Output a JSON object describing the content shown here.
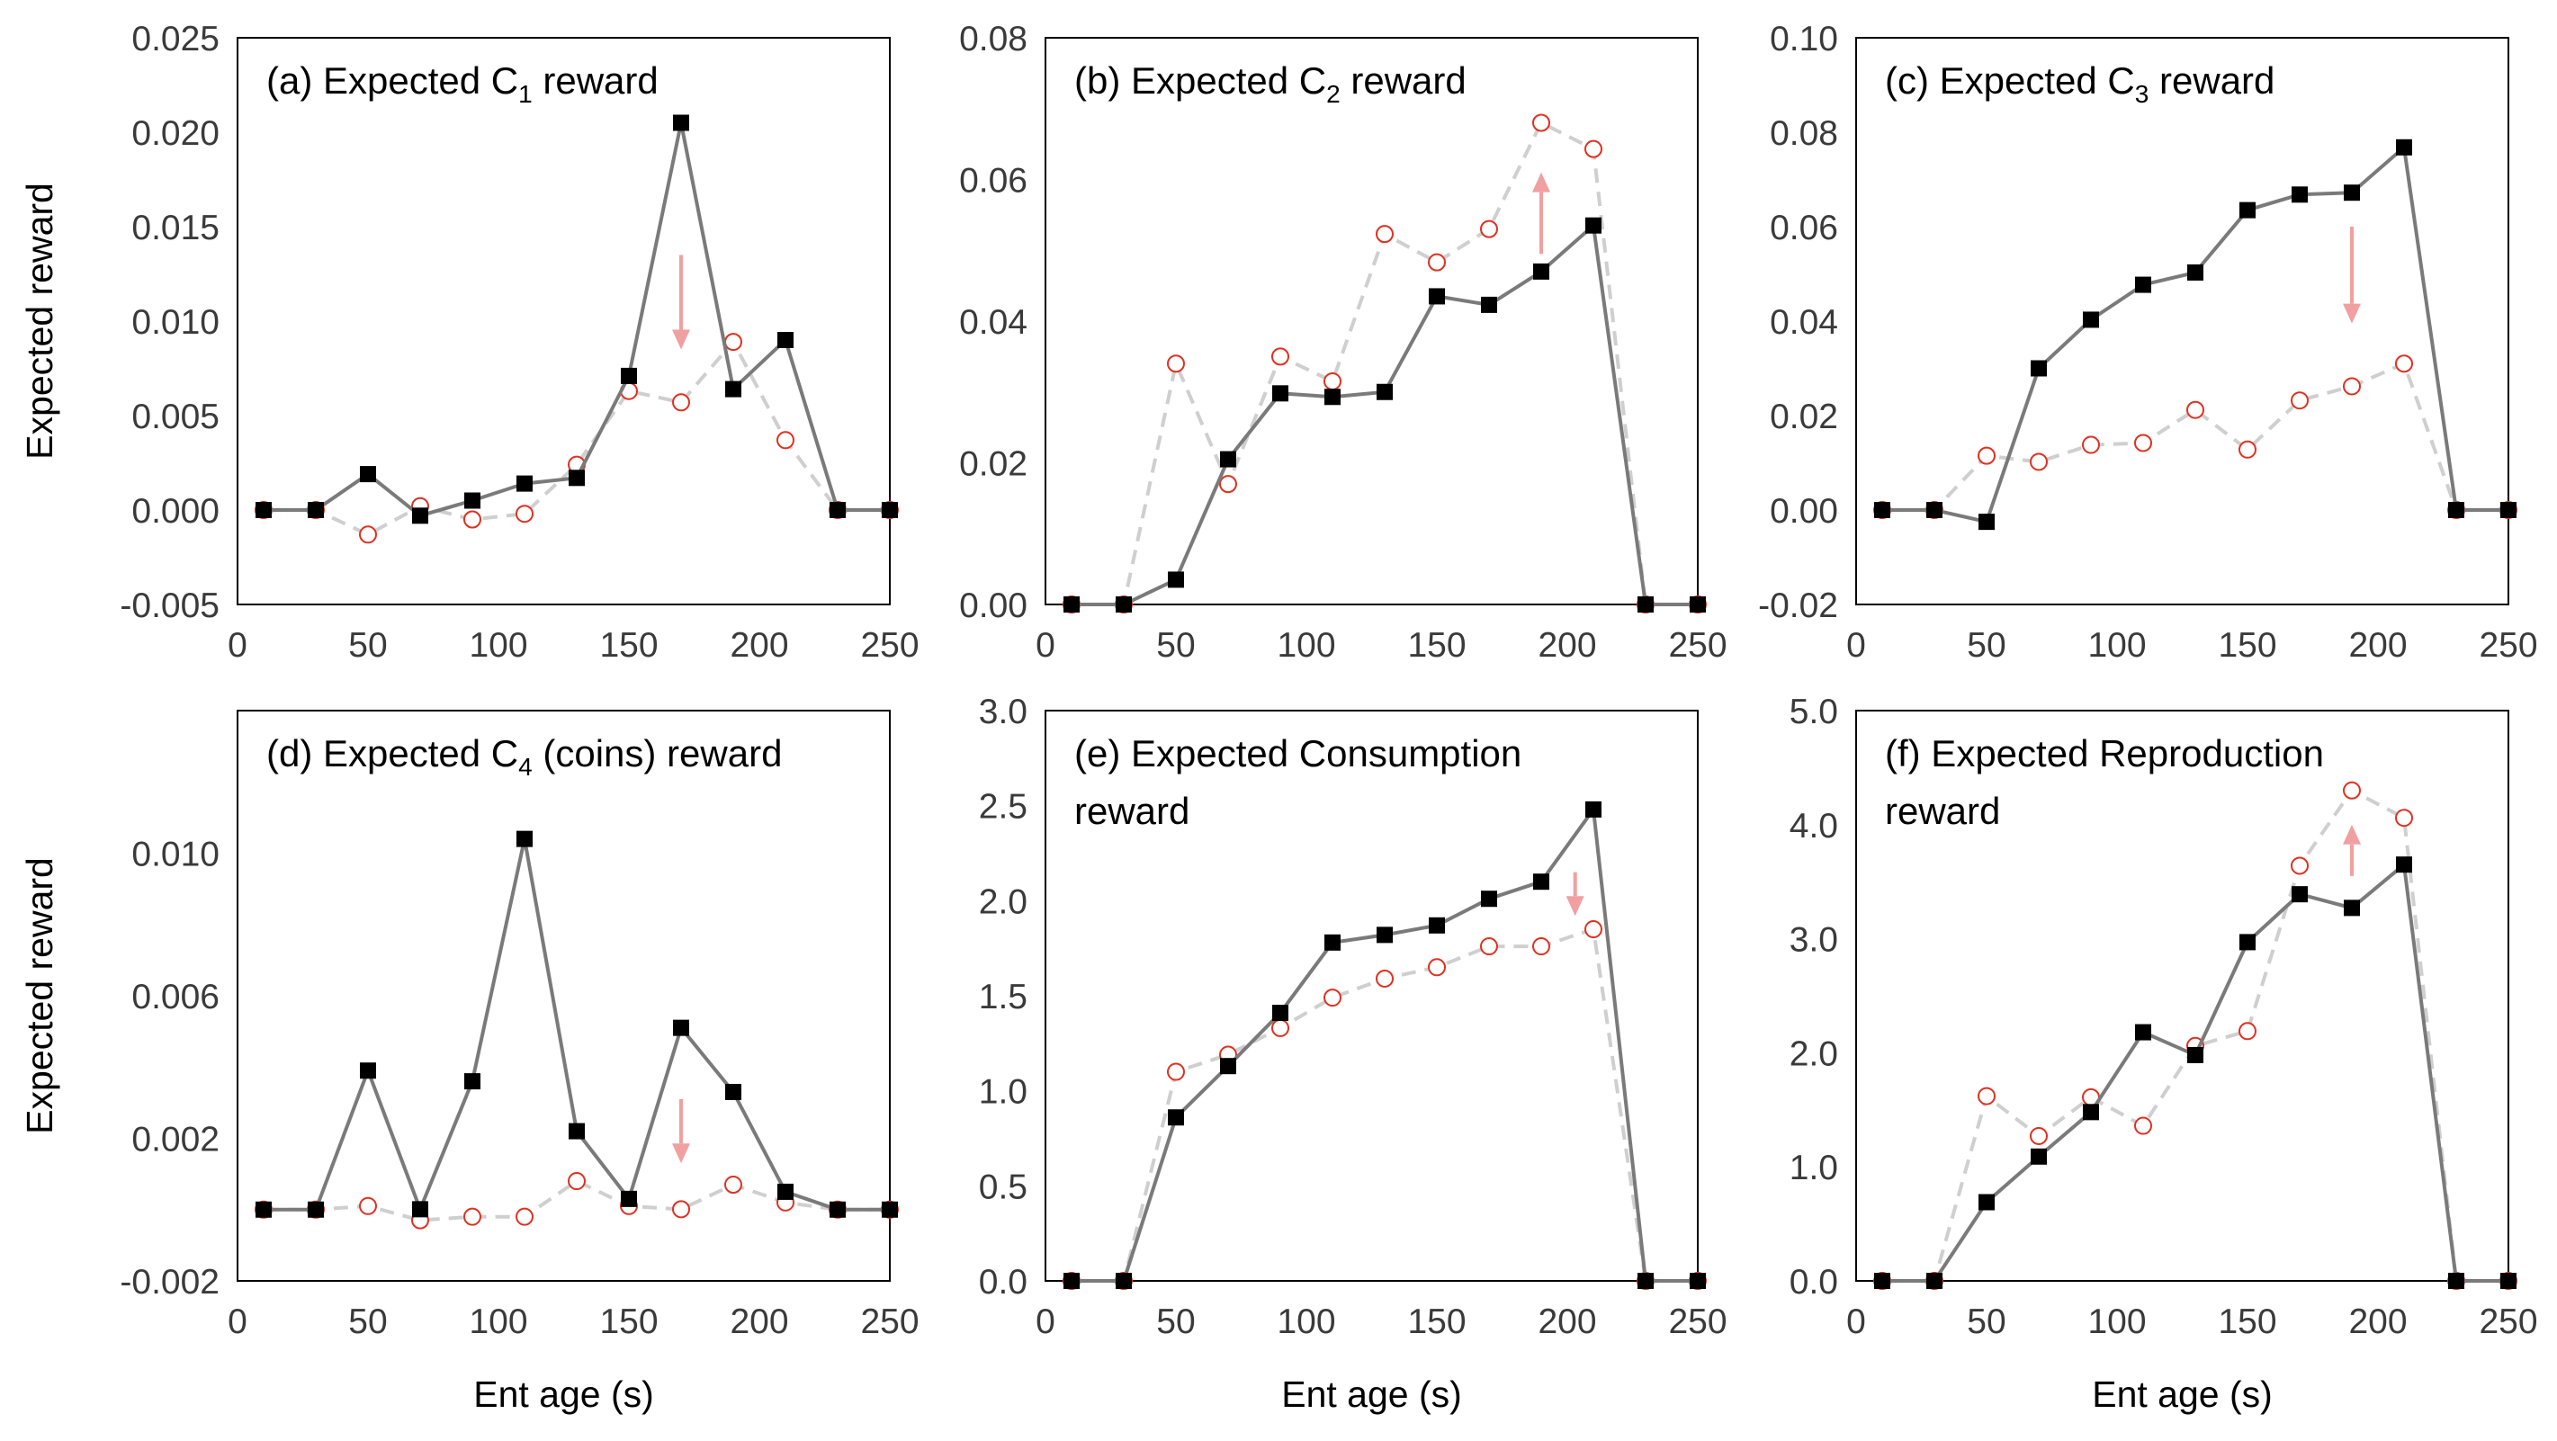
{
  "chart_data": [
    {
      "type": "line",
      "panel": "a",
      "title_lines": [
        {
          "parts": [
            {
              "text": "(a) Expected C"
            },
            {
              "text": "1",
              "sub": true
            },
            {
              "text": " reward"
            }
          ]
        }
      ],
      "xlabel": "",
      "ylabel": "Expected reward",
      "xlim": [
        0,
        250
      ],
      "ylim": [
        -0.005,
        0.025
      ],
      "xticks": [
        0,
        50,
        100,
        150,
        200,
        250
      ],
      "xtick_labels": [
        "0",
        "50",
        "100",
        "150",
        "200",
        "250"
      ],
      "yticks": [
        -0.005,
        0,
        0.005,
        0.01,
        0.015,
        0.02,
        0.025
      ],
      "ytick_labels": [
        "-0.005",
        "0.000",
        "0.005",
        "0.010",
        "0.015",
        "0.020",
        "0.025"
      ],
      "x": [
        10,
        30,
        50,
        70,
        90,
        110,
        130,
        150,
        170,
        190,
        210,
        230,
        250
      ],
      "series": [
        {
          "name": "solid",
          "style": "solid-square",
          "color": "#7a7a7a",
          "marker_color": "#000000",
          "values": [
            0,
            0,
            0.0019,
            -0.0003,
            0.0005,
            0.0014,
            0.0017,
            0.0071,
            0.0205,
            0.0064,
            0.009,
            0,
            0
          ]
        },
        {
          "name": "dashed",
          "style": "dashed-circle",
          "color": "#cfcfcf",
          "marker_color": "#e03020",
          "values": [
            0,
            0,
            -0.0013,
            0.0002,
            -0.0005,
            -0.0002,
            0.0024,
            0.0063,
            0.0057,
            0.0089,
            0.0037,
            0,
            0
          ]
        }
      ],
      "arrow": {
        "x": 170,
        "from": 0.0135,
        "to": 0.0085,
        "color": "#f0a0a0"
      }
    },
    {
      "type": "line",
      "panel": "b",
      "title_lines": [
        {
          "parts": [
            {
              "text": "(b) Expected C"
            },
            {
              "text": "2",
              "sub": true
            },
            {
              "text": " reward"
            }
          ]
        }
      ],
      "xlabel": "",
      "ylabel": "",
      "xlim": [
        0,
        250
      ],
      "ylim": [
        0,
        0.08
      ],
      "xticks": [
        0,
        50,
        100,
        150,
        200,
        250
      ],
      "xtick_labels": [
        "0",
        "50",
        "100",
        "150",
        "200",
        "250"
      ],
      "yticks": [
        0,
        0.02,
        0.04,
        0.06,
        0.08
      ],
      "ytick_labels": [
        "0.00",
        "0.02",
        "0.04",
        "0.06",
        "0.08"
      ],
      "x": [
        10,
        30,
        50,
        70,
        90,
        110,
        130,
        150,
        170,
        190,
        210,
        230,
        250
      ],
      "series": [
        {
          "name": "solid",
          "style": "solid-square",
          "color": "#7a7a7a",
          "marker_color": "#000000",
          "values": [
            0,
            0,
            0.0035,
            0.0205,
            0.0298,
            0.0293,
            0.03,
            0.0435,
            0.0423,
            0.047,
            0.0535,
            0,
            0
          ]
        },
        {
          "name": "dashed",
          "style": "dashed-circle",
          "color": "#cfcfcf",
          "marker_color": "#e03020",
          "values": [
            0,
            0,
            0.034,
            0.017,
            0.035,
            0.0315,
            0.0523,
            0.0483,
            0.053,
            0.068,
            0.0643,
            0,
            0
          ]
        }
      ],
      "arrow": {
        "x": 190,
        "from": 0.0495,
        "to": 0.061,
        "color": "#f0a0a0"
      }
    },
    {
      "type": "line",
      "panel": "c",
      "title_lines": [
        {
          "parts": [
            {
              "text": "(c) Expected C"
            },
            {
              "text": "3",
              "sub": true
            },
            {
              "text": " reward"
            }
          ]
        }
      ],
      "xlabel": "",
      "ylabel": "",
      "xlim": [
        0,
        250
      ],
      "ylim": [
        -0.02,
        0.1
      ],
      "xticks": [
        0,
        50,
        100,
        150,
        200,
        250
      ],
      "xtick_labels": [
        "0",
        "50",
        "100",
        "150",
        "200",
        "250"
      ],
      "yticks": [
        -0.02,
        0,
        0.02,
        0.04,
        0.06,
        0.08,
        0.1
      ],
      "ytick_labels": [
        "-0.02",
        "0.00",
        "0.02",
        "0.04",
        "0.06",
        "0.08",
        "0.10"
      ],
      "x": [
        10,
        30,
        50,
        70,
        90,
        110,
        130,
        150,
        170,
        190,
        210,
        230,
        250
      ],
      "series": [
        {
          "name": "solid",
          "style": "solid-square",
          "color": "#7a7a7a",
          "marker_color": "#000000",
          "values": [
            0,
            0,
            -0.0025,
            0.03,
            0.0403,
            0.0477,
            0.0503,
            0.0635,
            0.0668,
            0.0672,
            0.0768,
            0,
            0
          ]
        },
        {
          "name": "dashed",
          "style": "dashed-circle",
          "color": "#cfcfcf",
          "marker_color": "#e03020",
          "values": [
            0,
            0,
            0.0115,
            0.0102,
            0.0138,
            0.0142,
            0.0212,
            0.0128,
            0.0232,
            0.0262,
            0.031,
            0,
            0
          ]
        }
      ],
      "arrow": {
        "x": 190,
        "from": 0.06,
        "to": 0.0395,
        "color": "#f0a0a0"
      }
    },
    {
      "type": "line",
      "panel": "d",
      "title_lines": [
        {
          "parts": [
            {
              "text": "(d) Expected C"
            },
            {
              "text": "4",
              "sub": true
            },
            {
              "text": " (coins) reward"
            }
          ]
        }
      ],
      "xlabel": "Ent age (s)",
      "ylabel": "Expected reward",
      "xlim": [
        0,
        250
      ],
      "ylim": [
        -0.002,
        0.014
      ],
      "xticks": [
        0,
        50,
        100,
        150,
        200,
        250
      ],
      "xtick_labels": [
        "0",
        "50",
        "100",
        "150",
        "200",
        "250"
      ],
      "yticks": [
        -0.002,
        0.002,
        0.006,
        0.01
      ],
      "ytick_labels": [
        "-0.002",
        "0.002",
        "0.006",
        "0.010"
      ],
      "x": [
        10,
        30,
        50,
        70,
        90,
        110,
        130,
        150,
        170,
        190,
        210,
        230,
        250
      ],
      "series": [
        {
          "name": "solid",
          "style": "solid-square",
          "color": "#7a7a7a",
          "marker_color": "#000000",
          "values": [
            0,
            0,
            0.0039,
            1e-05,
            0.0036,
            0.0104,
            0.0022,
            0.0003,
            0.0051,
            0.0033,
            0.0005,
            0,
            0
          ]
        },
        {
          "name": "dashed",
          "style": "dashed-circle",
          "color": "#cfcfcf",
          "marker_color": "#e03020",
          "values": [
            0,
            0,
            0.0001,
            -0.0003,
            -0.0002,
            -0.0002,
            0.0008,
            0.0001,
            1e-05,
            0.0007,
            0.0002,
            0,
            0
          ]
        }
      ],
      "arrow": {
        "x": 170,
        "from": 0.0031,
        "to": 0.0013,
        "color": "#f0a0a0"
      }
    },
    {
      "type": "line",
      "panel": "e",
      "title_lines": [
        {
          "parts": [
            {
              "text": "(e) Expected Consumption"
            }
          ]
        },
        {
          "parts": [
            {
              "text": "reward"
            }
          ]
        }
      ],
      "xlabel": "Ent age (s)",
      "ylabel": "",
      "xlim": [
        0,
        250
      ],
      "ylim": [
        0,
        3
      ],
      "xticks": [
        0,
        50,
        100,
        150,
        200,
        250
      ],
      "xtick_labels": [
        "0",
        "50",
        "100",
        "150",
        "200",
        "250"
      ],
      "yticks": [
        0,
        0.5,
        1,
        1.5,
        2,
        2.5,
        3
      ],
      "ytick_labels": [
        "0.0",
        "0.5",
        "1.0",
        "1.5",
        "2.0",
        "2.5",
        "3.0"
      ],
      "x": [
        10,
        30,
        50,
        70,
        90,
        110,
        130,
        150,
        170,
        190,
        210,
        230,
        250
      ],
      "series": [
        {
          "name": "solid",
          "style": "solid-square",
          "color": "#7a7a7a",
          "marker_color": "#000000",
          "values": [
            0,
            0,
            0.86,
            1.13,
            1.41,
            1.78,
            1.82,
            1.87,
            2.01,
            2.1,
            2.48,
            0,
            0
          ]
        },
        {
          "name": "dashed",
          "style": "dashed-circle",
          "color": "#cfcfcf",
          "marker_color": "#e03020",
          "values": [
            0,
            0,
            1.1,
            1.19,
            1.33,
            1.49,
            1.59,
            1.65,
            1.76,
            1.76,
            1.85,
            0,
            0
          ]
        }
      ],
      "arrow": {
        "x": 203,
        "from": 2.15,
        "to": 1.92,
        "color": "#f0a0a0"
      }
    },
    {
      "type": "line",
      "panel": "f",
      "title_lines": [
        {
          "parts": [
            {
              "text": "(f) Expected Reproduction"
            }
          ]
        },
        {
          "parts": [
            {
              "text": "reward"
            }
          ]
        }
      ],
      "xlabel": "Ent age (s)",
      "ylabel": "",
      "xlim": [
        0,
        250
      ],
      "ylim": [
        0,
        5
      ],
      "xticks": [
        0,
        50,
        100,
        150,
        200,
        250
      ],
      "xtick_labels": [
        "0",
        "50",
        "100",
        "150",
        "200",
        "250"
      ],
      "yticks": [
        0,
        1,
        2,
        3,
        4,
        5
      ],
      "ytick_labels": [
        "0.0",
        "1.0",
        "2.0",
        "3.0",
        "4.0",
        "5.0"
      ],
      "x": [
        10,
        30,
        50,
        70,
        90,
        110,
        130,
        150,
        170,
        190,
        210,
        230,
        250
      ],
      "series": [
        {
          "name": "solid",
          "style": "solid-square",
          "color": "#7a7a7a",
          "marker_color": "#000000",
          "values": [
            0,
            0,
            0.69,
            1.09,
            1.48,
            2.18,
            1.98,
            2.97,
            3.39,
            3.27,
            3.65,
            0,
            0
          ]
        },
        {
          "name": "dashed",
          "style": "dashed-circle",
          "color": "#cfcfcf",
          "marker_color": "#e03020",
          "values": [
            0,
            0,
            1.62,
            1.27,
            1.61,
            1.36,
            2.06,
            2.19,
            3.64,
            4.3,
            4.06,
            0,
            0
          ]
        }
      ],
      "arrow": {
        "x": 190,
        "from": 3.55,
        "to": 4.0,
        "color": "#f0a0a0"
      }
    }
  ]
}
